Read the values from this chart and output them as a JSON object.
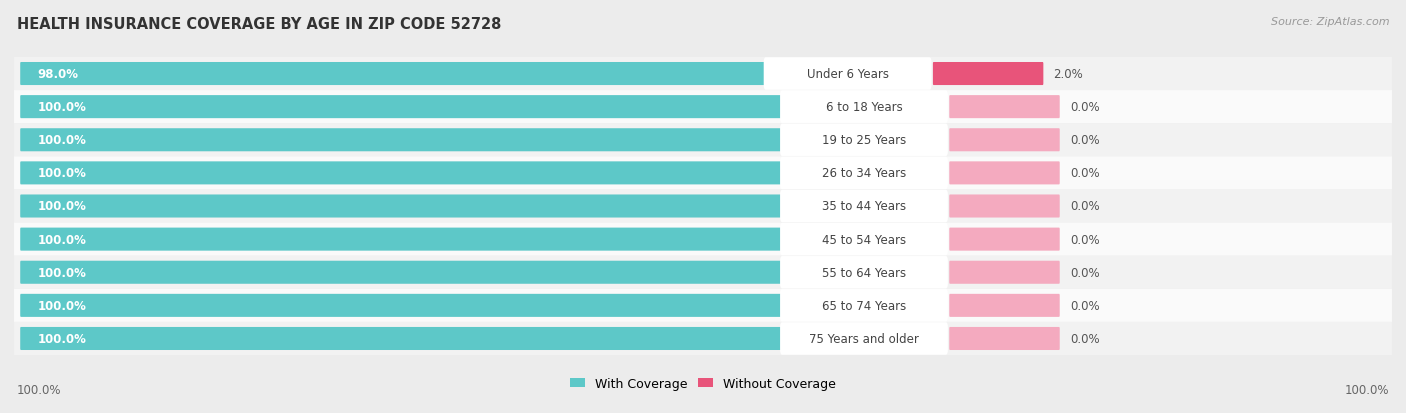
{
  "title": "HEALTH INSURANCE COVERAGE BY AGE IN ZIP CODE 52728",
  "source": "Source: ZipAtlas.com",
  "categories": [
    "Under 6 Years",
    "6 to 18 Years",
    "19 to 25 Years",
    "26 to 34 Years",
    "35 to 44 Years",
    "45 to 54 Years",
    "55 to 64 Years",
    "65 to 74 Years",
    "75 Years and older"
  ],
  "with_coverage": [
    98.0,
    100.0,
    100.0,
    100.0,
    100.0,
    100.0,
    100.0,
    100.0,
    100.0
  ],
  "without_coverage": [
    2.0,
    0.0,
    0.0,
    0.0,
    0.0,
    0.0,
    0.0,
    0.0,
    0.0
  ],
  "color_with": "#5DC8C8",
  "color_without_row0": "#E8547A",
  "color_without_other": "#F4AABF",
  "bg_row_even": "#f2f2f2",
  "bg_row_odd": "#fafafa",
  "title_fontsize": 10.5,
  "label_fontsize": 8.5,
  "cat_fontsize": 8.5,
  "legend_fontsize": 9,
  "source_fontsize": 8
}
